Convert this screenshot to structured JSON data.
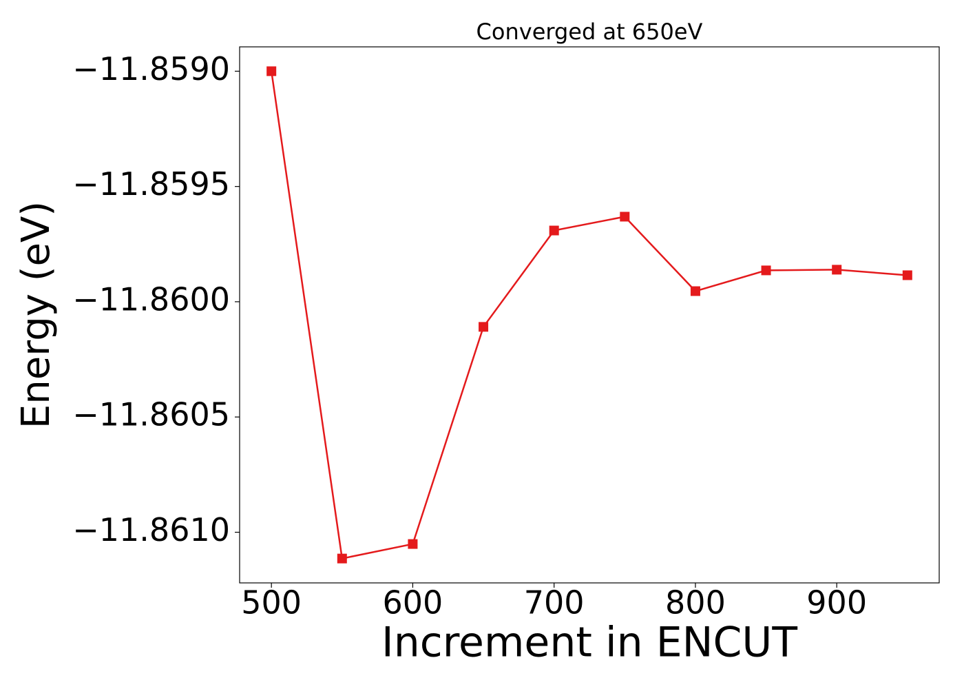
{
  "chart_data": {
    "type": "line",
    "title": "Converged at 650eV",
    "x_label": "Increment in ENCUT",
    "y_label": "Energy (eV)",
    "x": [
      500,
      550,
      600,
      650,
      700,
      750,
      800,
      850,
      900,
      950
    ],
    "series": [
      {
        "color": "#e41a1c",
        "marker": "square",
        "values": [
          -11.859,
          -11.861114,
          -11.861051,
          -11.860109,
          -11.859691,
          -11.859631,
          -11.859954,
          -11.859864,
          -11.859861,
          -11.859885
        ]
      }
    ],
    "xlim": [
      477.5,
      972.5
    ],
    "xticks": [
      500,
      600,
      700,
      800,
      900
    ],
    "ylim": [
      -11.8612197,
      -11.8588943
    ],
    "yticks": [
      {
        "value": -11.859,
        "label": "−11.8590"
      },
      {
        "value": -11.8595,
        "label": "−11.8595"
      },
      {
        "value": -11.86,
        "label": "−11.8600"
      },
      {
        "value": -11.8605,
        "label": "−11.8605"
      },
      {
        "value": -11.861,
        "label": "−11.8610"
      }
    ],
    "grid": false
  }
}
